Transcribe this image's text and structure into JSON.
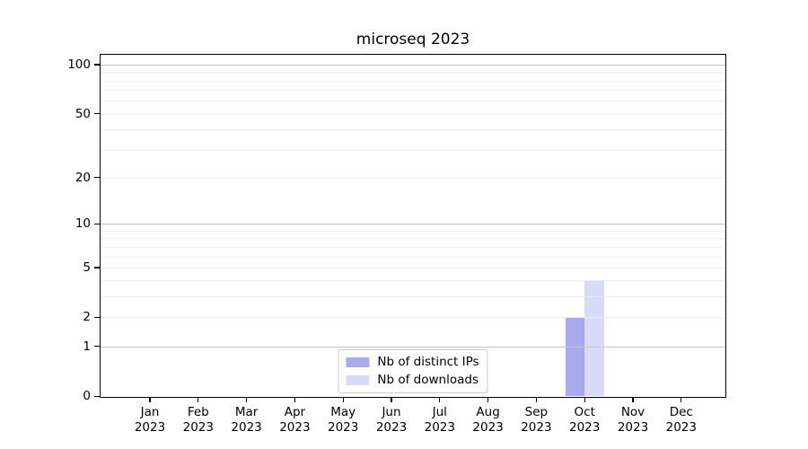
{
  "chart_data": {
    "type": "bar",
    "title": "microseq 2023",
    "categories": [
      "Jan",
      "Feb",
      "Mar",
      "Apr",
      "May",
      "Jun",
      "Jul",
      "Aug",
      "Sep",
      "Oct",
      "Nov",
      "Dec"
    ],
    "category_year": "2023",
    "series": [
      {
        "name": "Nb of distinct IPs",
        "color": "#a9a9ee",
        "values": [
          0,
          0,
          0,
          0,
          0,
          0,
          0,
          0,
          0,
          2,
          0,
          0
        ]
      },
      {
        "name": "Nb of downloads",
        "color": "#d9d9f8",
        "values": [
          0,
          0,
          0,
          0,
          0,
          0,
          0,
          0,
          0,
          4,
          0,
          0
        ]
      }
    ],
    "xlabel": "",
    "ylabel": "",
    "yscale": "log1p",
    "ylim": [
      0,
      115
    ],
    "yticks": [
      100,
      50,
      20,
      10,
      5,
      2,
      1,
      0
    ],
    "grid": {
      "show": true,
      "major_values": [
        1,
        10,
        100
      ],
      "minor_values": [
        2,
        3,
        4,
        5,
        6,
        7,
        8,
        9,
        20,
        30,
        40,
        50,
        60,
        70,
        80,
        90
      ],
      "major_color": "#c3c3c3",
      "minor_color": "#ededed",
      "grid_above_bars": true
    },
    "legend_position": "lower center"
  }
}
